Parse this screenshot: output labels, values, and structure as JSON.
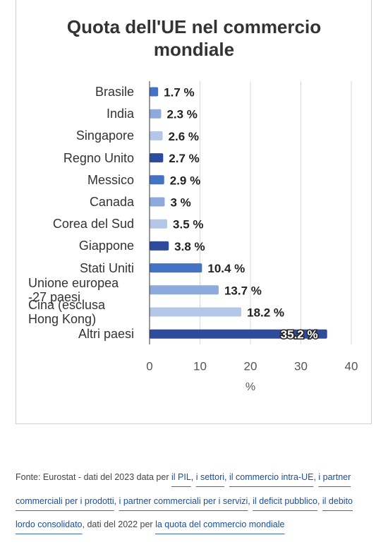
{
  "chart_data": {
    "type": "bar",
    "orientation": "horizontal",
    "title": "Quota dell'UE nel commercio mondiale",
    "categories": [
      "Brasile",
      "India",
      "Singapore",
      "Regno Unito",
      "Messico",
      "Canada",
      "Corea del Sud",
      "Giappone",
      "Stati Uniti",
      "Unione europea -27 paesi",
      "Cina (esclusa Hong Kong)",
      "Altri paesi"
    ],
    "values": [
      1.7,
      2.3,
      2.6,
      2.7,
      2.9,
      3,
      3.5,
      3.8,
      10.4,
      13.7,
      18.2,
      35.2
    ],
    "value_labels": [
      "1.7 %",
      "2.3 %",
      "2.6 %",
      "2.7 %",
      "2.9 %",
      "3 %",
      "3.5 %",
      "3.8 %",
      "10.4 %",
      "13.7 %",
      "18.2 %",
      "35.2 %"
    ],
    "colors": [
      "#4472c4",
      "#8ea9db",
      "#b4c7e7",
      "#2f4b9c",
      "#4472c4",
      "#8ea9db",
      "#b4c7e7",
      "#2f4b9c",
      "#4472c4",
      "#8ea9db",
      "#b4c7e7",
      "#2f4b9c"
    ],
    "xlim": [
      0,
      40
    ],
    "xticks": [
      0,
      10,
      20,
      30,
      40
    ],
    "xlabel": "%",
    "grid": true
  },
  "footer": {
    "segments": [
      {
        "text": "Fonte: Eurostat - dati del 2023 data per ",
        "link": false
      },
      {
        "text": "il PIL",
        "link": true
      },
      {
        "text": ", ",
        "link": false
      },
      {
        "text": "i settori",
        "link": true
      },
      {
        "text": ", ",
        "link": false
      },
      {
        "text": "il commercio intra-UE",
        "link": true
      },
      {
        "text": ", ",
        "link": false
      },
      {
        "text": "i partner commerciali per i prodotti",
        "link": true
      },
      {
        "text": ", ",
        "link": false
      },
      {
        "text": "i partner commerciali per i servizi",
        "link": true
      },
      {
        "text": ", ",
        "link": false
      },
      {
        "text": "il deficit pubblico",
        "link": true
      },
      {
        "text": ", ",
        "link": false
      },
      {
        "text": "il debito lordo consolidato",
        "link": true
      },
      {
        "text": ", dati del 2022 per ",
        "link": false
      },
      {
        "text": "la quota del commercio mondiale",
        "link": true
      }
    ]
  }
}
